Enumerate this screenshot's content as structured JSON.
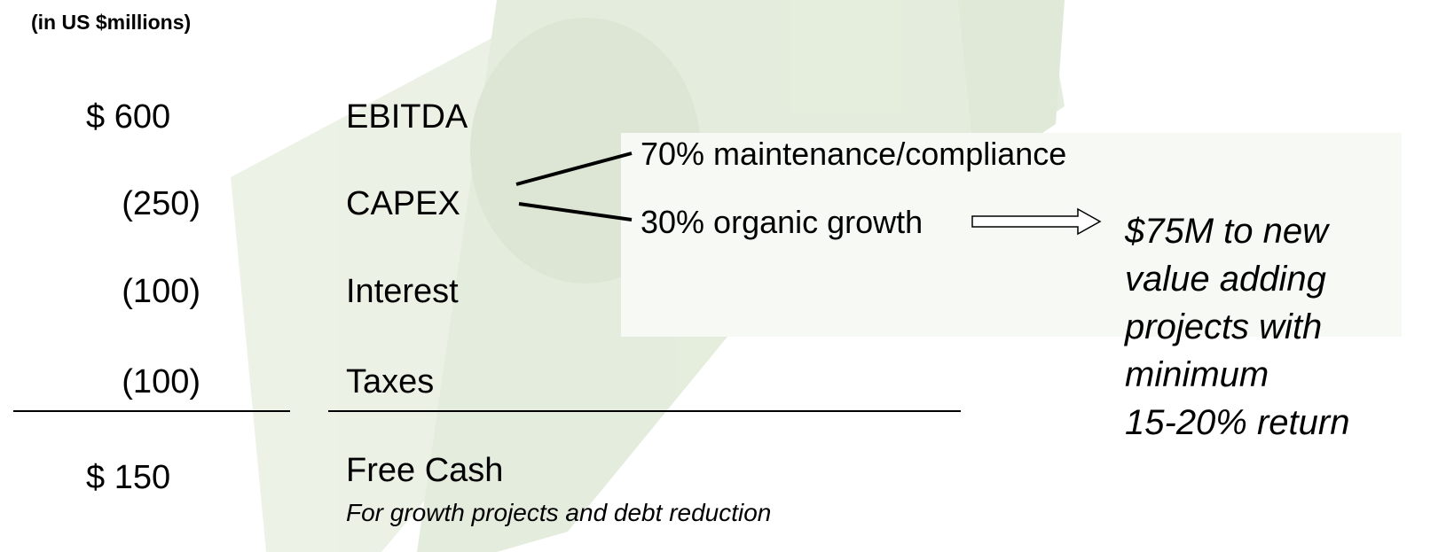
{
  "unit_label": "(in US $millions)",
  "rows": [
    {
      "amount": "$ 600",
      "label": "EBITDA"
    },
    {
      "amount": "(250)",
      "label": "CAPEX"
    },
    {
      "amount": "(100)",
      "label": "Interest"
    },
    {
      "amount": "(100)",
      "label": "Taxes"
    }
  ],
  "total": {
    "amount": "$ 150",
    "label": "Free Cash",
    "note": "For growth projects and debt reduction"
  },
  "capex_split": [
    "70% maintenance/compliance",
    "30% organic growth"
  ],
  "callout": [
    "$75M to new",
    "value adding",
    "projects with",
    "minimum",
    "15-20% return"
  ]
}
